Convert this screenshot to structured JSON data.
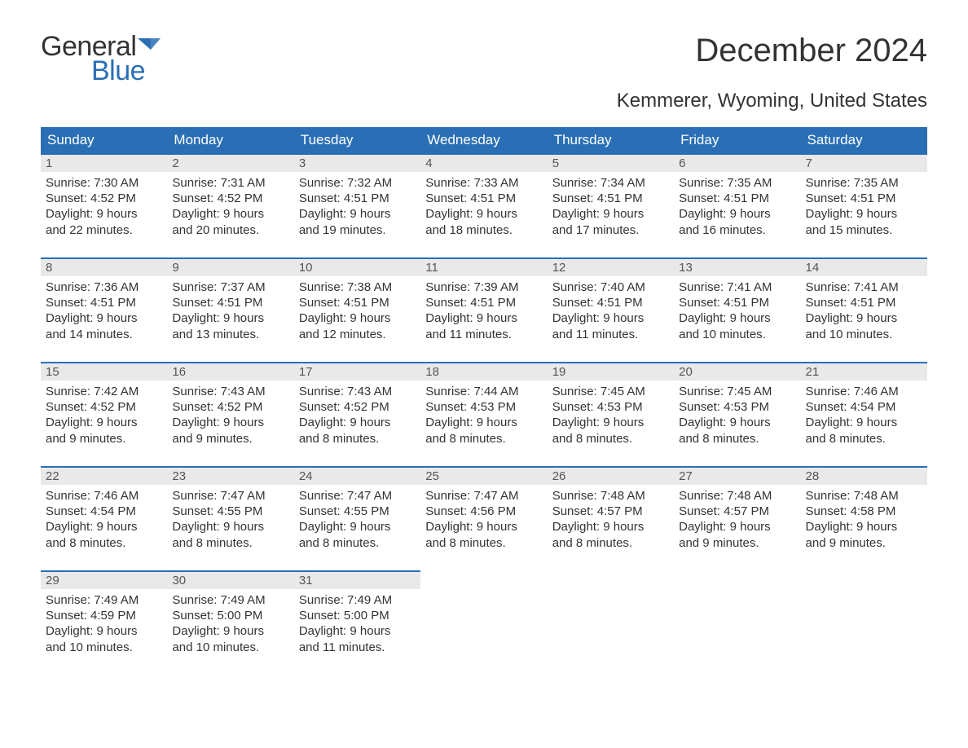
{
  "brand": {
    "word1": "General",
    "word2": "Blue",
    "icon_color": "#2a6fb5"
  },
  "title": "December 2024",
  "subtitle": "Kemmerer, Wyoming, United States",
  "header_bg": "#2a6fb5",
  "header_fg": "#ffffff",
  "daynum_bg": "#e9e9e9",
  "week_border": "#2a6fb5",
  "text_color": "#333333",
  "title_fontsize": 40,
  "subtitle_fontsize": 24,
  "header_fontsize": 17,
  "body_fontsize": 15,
  "columns": [
    "Sunday",
    "Monday",
    "Tuesday",
    "Wednesday",
    "Thursday",
    "Friday",
    "Saturday"
  ],
  "weeks": [
    [
      {
        "n": "1",
        "sr": "Sunrise: 7:30 AM",
        "ss": "Sunset: 4:52 PM",
        "d1": "Daylight: 9 hours",
        "d2": "and 22 minutes."
      },
      {
        "n": "2",
        "sr": "Sunrise: 7:31 AM",
        "ss": "Sunset: 4:52 PM",
        "d1": "Daylight: 9 hours",
        "d2": "and 20 minutes."
      },
      {
        "n": "3",
        "sr": "Sunrise: 7:32 AM",
        "ss": "Sunset: 4:51 PM",
        "d1": "Daylight: 9 hours",
        "d2": "and 19 minutes."
      },
      {
        "n": "4",
        "sr": "Sunrise: 7:33 AM",
        "ss": "Sunset: 4:51 PM",
        "d1": "Daylight: 9 hours",
        "d2": "and 18 minutes."
      },
      {
        "n": "5",
        "sr": "Sunrise: 7:34 AM",
        "ss": "Sunset: 4:51 PM",
        "d1": "Daylight: 9 hours",
        "d2": "and 17 minutes."
      },
      {
        "n": "6",
        "sr": "Sunrise: 7:35 AM",
        "ss": "Sunset: 4:51 PM",
        "d1": "Daylight: 9 hours",
        "d2": "and 16 minutes."
      },
      {
        "n": "7",
        "sr": "Sunrise: 7:35 AM",
        "ss": "Sunset: 4:51 PM",
        "d1": "Daylight: 9 hours",
        "d2": "and 15 minutes."
      }
    ],
    [
      {
        "n": "8",
        "sr": "Sunrise: 7:36 AM",
        "ss": "Sunset: 4:51 PM",
        "d1": "Daylight: 9 hours",
        "d2": "and 14 minutes."
      },
      {
        "n": "9",
        "sr": "Sunrise: 7:37 AM",
        "ss": "Sunset: 4:51 PM",
        "d1": "Daylight: 9 hours",
        "d2": "and 13 minutes."
      },
      {
        "n": "10",
        "sr": "Sunrise: 7:38 AM",
        "ss": "Sunset: 4:51 PM",
        "d1": "Daylight: 9 hours",
        "d2": "and 12 minutes."
      },
      {
        "n": "11",
        "sr": "Sunrise: 7:39 AM",
        "ss": "Sunset: 4:51 PM",
        "d1": "Daylight: 9 hours",
        "d2": "and 11 minutes."
      },
      {
        "n": "12",
        "sr": "Sunrise: 7:40 AM",
        "ss": "Sunset: 4:51 PM",
        "d1": "Daylight: 9 hours",
        "d2": "and 11 minutes."
      },
      {
        "n": "13",
        "sr": "Sunrise: 7:41 AM",
        "ss": "Sunset: 4:51 PM",
        "d1": "Daylight: 9 hours",
        "d2": "and 10 minutes."
      },
      {
        "n": "14",
        "sr": "Sunrise: 7:41 AM",
        "ss": "Sunset: 4:51 PM",
        "d1": "Daylight: 9 hours",
        "d2": "and 10 minutes."
      }
    ],
    [
      {
        "n": "15",
        "sr": "Sunrise: 7:42 AM",
        "ss": "Sunset: 4:52 PM",
        "d1": "Daylight: 9 hours",
        "d2": "and 9 minutes."
      },
      {
        "n": "16",
        "sr": "Sunrise: 7:43 AM",
        "ss": "Sunset: 4:52 PM",
        "d1": "Daylight: 9 hours",
        "d2": "and 9 minutes."
      },
      {
        "n": "17",
        "sr": "Sunrise: 7:43 AM",
        "ss": "Sunset: 4:52 PM",
        "d1": "Daylight: 9 hours",
        "d2": "and 8 minutes."
      },
      {
        "n": "18",
        "sr": "Sunrise: 7:44 AM",
        "ss": "Sunset: 4:53 PM",
        "d1": "Daylight: 9 hours",
        "d2": "and 8 minutes."
      },
      {
        "n": "19",
        "sr": "Sunrise: 7:45 AM",
        "ss": "Sunset: 4:53 PM",
        "d1": "Daylight: 9 hours",
        "d2": "and 8 minutes."
      },
      {
        "n": "20",
        "sr": "Sunrise: 7:45 AM",
        "ss": "Sunset: 4:53 PM",
        "d1": "Daylight: 9 hours",
        "d2": "and 8 minutes."
      },
      {
        "n": "21",
        "sr": "Sunrise: 7:46 AM",
        "ss": "Sunset: 4:54 PM",
        "d1": "Daylight: 9 hours",
        "d2": "and 8 minutes."
      }
    ],
    [
      {
        "n": "22",
        "sr": "Sunrise: 7:46 AM",
        "ss": "Sunset: 4:54 PM",
        "d1": "Daylight: 9 hours",
        "d2": "and 8 minutes."
      },
      {
        "n": "23",
        "sr": "Sunrise: 7:47 AM",
        "ss": "Sunset: 4:55 PM",
        "d1": "Daylight: 9 hours",
        "d2": "and 8 minutes."
      },
      {
        "n": "24",
        "sr": "Sunrise: 7:47 AM",
        "ss": "Sunset: 4:55 PM",
        "d1": "Daylight: 9 hours",
        "d2": "and 8 minutes."
      },
      {
        "n": "25",
        "sr": "Sunrise: 7:47 AM",
        "ss": "Sunset: 4:56 PM",
        "d1": "Daylight: 9 hours",
        "d2": "and 8 minutes."
      },
      {
        "n": "26",
        "sr": "Sunrise: 7:48 AM",
        "ss": "Sunset: 4:57 PM",
        "d1": "Daylight: 9 hours",
        "d2": "and 8 minutes."
      },
      {
        "n": "27",
        "sr": "Sunrise: 7:48 AM",
        "ss": "Sunset: 4:57 PM",
        "d1": "Daylight: 9 hours",
        "d2": "and 9 minutes."
      },
      {
        "n": "28",
        "sr": "Sunrise: 7:48 AM",
        "ss": "Sunset: 4:58 PM",
        "d1": "Daylight: 9 hours",
        "d2": "and 9 minutes."
      }
    ],
    [
      {
        "n": "29",
        "sr": "Sunrise: 7:49 AM",
        "ss": "Sunset: 4:59 PM",
        "d1": "Daylight: 9 hours",
        "d2": "and 10 minutes."
      },
      {
        "n": "30",
        "sr": "Sunrise: 7:49 AM",
        "ss": "Sunset: 5:00 PM",
        "d1": "Daylight: 9 hours",
        "d2": "and 10 minutes."
      },
      {
        "n": "31",
        "sr": "Sunrise: 7:49 AM",
        "ss": "Sunset: 5:00 PM",
        "d1": "Daylight: 9 hours",
        "d2": "and 11 minutes."
      },
      null,
      null,
      null,
      null
    ]
  ]
}
